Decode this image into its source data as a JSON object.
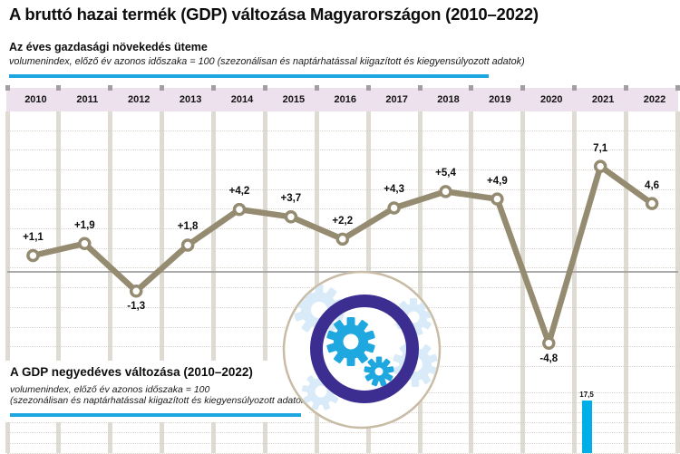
{
  "title": "A bruttó hazai termék (GDP) változása Magyarországon (2010–2022)",
  "section_annual": {
    "heading": "Az éves gazdasági növekedés üteme",
    "subnote": "volumenindex, előző év azonos időszaka = 100 (szezonálisan és naptárhatással kiigazított és kiegyensúlyozott adatok)"
  },
  "section_quarterly": {
    "heading": "A GDP negyedéves változása (2010–2022)",
    "subnote_line1": "volumenindex, előző év azonos időszaka = 100",
    "subnote_line2": "(szezonálisan és naptárhatással kiigazított és kiegyensúlyozott adatok)"
  },
  "icons": {
    "badge": "gears-in-circle"
  },
  "colors": {
    "line": "#948b70",
    "accent_blue": "#1ea6e0",
    "bar_cyan": "#00aee8",
    "badge_ring_purple": "#3c2e90",
    "badge_gear_cyan": "#1fa8e0",
    "badge_gear_pale": "#d9ebf8",
    "badge_outline_tan": "#c9bca6",
    "year_band_pink": "#ece1ed",
    "grid_separator": "#dedbd3",
    "zero_line": "#9c9c9c"
  },
  "chart_data": [
    {
      "type": "line",
      "title": "Az éves gazdasági növekedés üteme",
      "categories": [
        "2010",
        "2011",
        "2012",
        "2013",
        "2014",
        "2015",
        "2016",
        "2017",
        "2018",
        "2019",
        "2020",
        "2021",
        "2022"
      ],
      "values": [
        1.1,
        1.9,
        -1.3,
        1.8,
        4.2,
        3.7,
        2.2,
        4.3,
        5.4,
        4.9,
        -4.8,
        7.1,
        4.6
      ],
      "point_labels": [
        "+1,1",
        "+1,9",
        "-1,3",
        "+1,8",
        "+4,2",
        "+3,7",
        "+2,2",
        "+4,3",
        "+5,4",
        "+4,9",
        "-4,8",
        "7,1",
        "4,6"
      ],
      "ylim": [
        -6,
        9
      ],
      "zero_line": true,
      "grid": "dotted-horizontal",
      "marker": "open-circle"
    },
    {
      "type": "bar",
      "title": "A GDP negyedéves változása (2010–2022)",
      "categories": [
        "2021"
      ],
      "values": [
        17.5
      ],
      "point_labels": [
        "17,5"
      ],
      "clipped": "chart continues below visible image edge"
    }
  ]
}
